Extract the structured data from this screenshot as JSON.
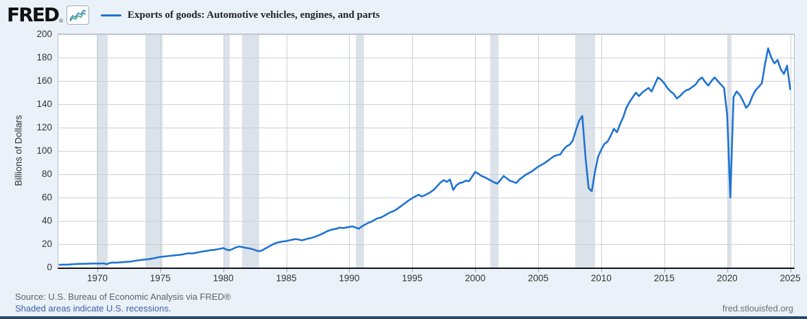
{
  "header": {
    "logo": "FRED",
    "registered": "®"
  },
  "footer": {
    "source": "Source: U.S. Bureau of Economic Analysis via FRED®",
    "recessions_note": "Shaded areas indicate U.S. recessions.",
    "site": "fred.stlouisfed.org"
  },
  "chart_data": {
    "type": "line",
    "title": "Exports of goods: Automotive vehicles, engines, and parts",
    "ylabel": "Billions of Dollars",
    "ylim": [
      0,
      200
    ],
    "yticks": [
      0,
      20,
      40,
      60,
      80,
      100,
      120,
      140,
      160,
      180,
      200
    ],
    "xlim": [
      1966.9,
      2025.3
    ],
    "xticks": [
      1970,
      1975,
      1980,
      1985,
      1990,
      1995,
      2000,
      2005,
      2010,
      2015,
      2020,
      2025
    ],
    "grid": true,
    "legend_position": "top",
    "frequency": "quarterly",
    "x_start": 1967.0,
    "x_step": 0.25,
    "values": [
      2.4,
      2.5,
      2.5,
      2.6,
      2.8,
      3.0,
      3.1,
      3.2,
      3.2,
      3.3,
      3.4,
      3.5,
      3.4,
      3.5,
      3.6,
      2.9,
      4.0,
      4.3,
      4.2,
      4.4,
      4.6,
      4.8,
      5.0,
      5.3,
      5.8,
      6.2,
      6.5,
      6.9,
      7.1,
      7.5,
      8.0,
      8.6,
      9.2,
      9.4,
      9.7,
      10.0,
      10.3,
      10.6,
      10.8,
      11.2,
      11.8,
      12.3,
      12.1,
      12.5,
      13.0,
      13.6,
      14.0,
      14.4,
      14.9,
      15.1,
      15.6,
      16.1,
      16.7,
      15.4,
      14.8,
      16.0,
      17.3,
      18.0,
      17.6,
      17.0,
      16.5,
      16.0,
      15.1,
      14.1,
      14.3,
      15.8,
      17.3,
      18.8,
      20.3,
      21.3,
      21.9,
      22.4,
      22.7,
      23.4,
      23.9,
      24.4,
      23.9,
      23.4,
      24.1,
      24.9,
      25.4,
      26.3,
      27.3,
      28.4,
      29.8,
      31.2,
      32.2,
      32.8,
      33.3,
      34.3,
      33.8,
      34.3,
      34.8,
      35.3,
      34.3,
      33.3,
      35.3,
      36.8,
      38.3,
      39.3,
      40.8,
      42.3,
      42.8,
      44.3,
      45.8,
      47.3,
      48.3,
      49.8,
      51.8,
      53.8,
      55.8,
      57.8,
      59.5,
      61.0,
      62.5,
      61.0,
      62.0,
      63.5,
      65.0,
      67.0,
      70.0,
      73.0,
      75.0,
      73.5,
      75.5,
      66.5,
      70.5,
      72.5,
      73.0,
      74.5,
      74.0,
      78.0,
      82.0,
      80.5,
      78.5,
      77.5,
      76.0,
      74.5,
      73.0,
      72.0,
      75.0,
      78.5,
      76.5,
      74.5,
      73.5,
      72.5,
      75.5,
      77.5,
      79.5,
      81.0,
      82.5,
      84.5,
      86.5,
      88.0,
      89.5,
      91.5,
      93.5,
      95.5,
      96.5,
      97.0,
      101.0,
      104.0,
      105.5,
      109.0,
      118.0,
      126.0,
      130.0,
      95.0,
      68.0,
      65.5,
      82.0,
      95.0,
      101.0,
      106.0,
      108.0,
      113.0,
      119.0,
      116.0,
      123.0,
      129.0,
      137.0,
      142.0,
      146.0,
      150.0,
      147.0,
      150.0,
      152.0,
      154.0,
      151.0,
      157.0,
      163.0,
      161.0,
      158.0,
      154.0,
      151.0,
      149.0,
      145.0,
      147.0,
      150.0,
      152.0,
      153.0,
      155.0,
      157.0,
      161.0,
      163.0,
      159.0,
      156.0,
      160.0,
      163.0,
      160.0,
      157.0,
      154.0,
      131.0,
      60.0,
      146.0,
      151.0,
      148.0,
      143.0,
      137.0,
      140.0,
      147.0,
      152.0,
      155.0,
      158.0,
      174.0,
      188.0,
      180.0,
      175.0,
      178.0,
      170.0,
      166.0,
      173.0,
      153.0
    ],
    "recessions": [
      [
        1969.92,
        1970.83
      ],
      [
        1973.83,
        1975.17
      ],
      [
        1980.0,
        1980.5
      ],
      [
        1981.5,
        1982.83
      ],
      [
        1990.5,
        1991.17
      ],
      [
        2001.17,
        2001.83
      ],
      [
        2007.92,
        2009.5
      ],
      [
        2020.08,
        2020.33
      ]
    ],
    "colors": {
      "line": "#1e73d2",
      "recession_band": "#dce2e9",
      "gridline": "#ccd0d4",
      "plot_border": "#b6bcc4",
      "axis": "#111111",
      "background": "#eaf1f9",
      "plot_background": "#ffffff"
    }
  }
}
